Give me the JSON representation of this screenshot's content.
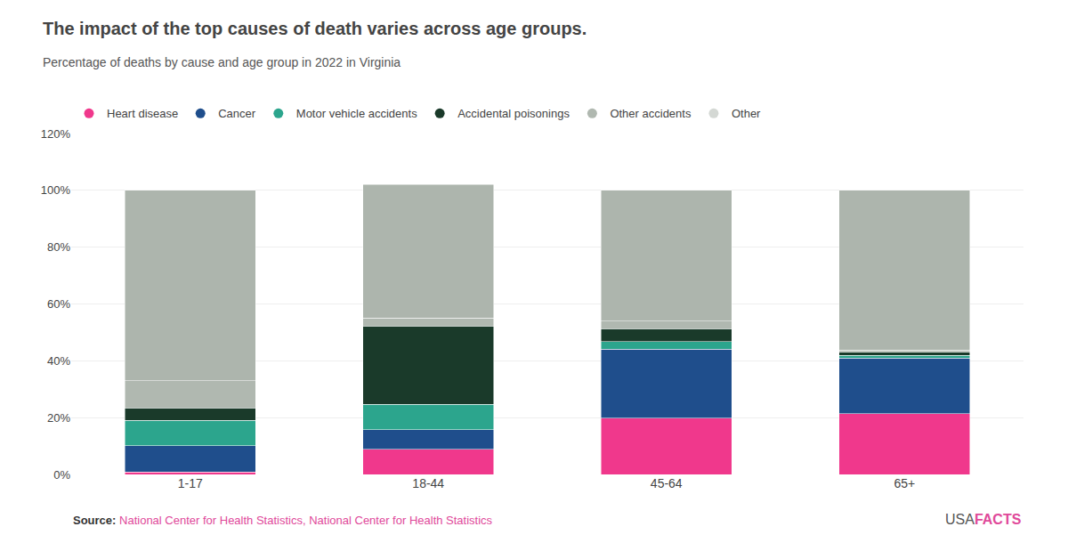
{
  "chart_data": {
    "type": "bar",
    "stacked": true,
    "title": "The impact of the top causes of death varies across age groups.",
    "subtitle": "Percentage of deaths by cause and age group in 2022 in Virginia",
    "categories": [
      "1-17",
      "18-44",
      "45-64",
      "65+"
    ],
    "series": [
      {
        "name": "Heart disease",
        "color": "#f0388c",
        "colors": [
          "#f0388c",
          "#f0388c",
          "#f0388c",
          "#f0388c"
        ],
        "values": [
          0.93,
          8.82,
          19.89,
          21.39
        ]
      },
      {
        "name": "Cancer",
        "color": "#1f4e8c",
        "colors": [
          "#1f4e8c",
          "#1f4e8c",
          "#1f4e8c",
          "#1f4e8c"
        ],
        "values": [
          9.15,
          6.96,
          24.28,
          19.56
        ]
      },
      {
        "name": "Motor vehicle accidents",
        "color": "#2ca58d",
        "colors": [
          "#2ca58d",
          "#2ca58d",
          "#2ca58d",
          "#2ca58d"
        ],
        "values": [
          8.93,
          8.82,
          2.53,
          0.89
        ]
      },
      {
        "name": "Accidental poisonings",
        "color": "#1a3a2a",
        "colors": [
          "#1a3a2a",
          "#1a3a2a",
          "#1a3a2a",
          "#1a3a2a"
        ],
        "values": [
          4.45,
          27.57,
          4.53,
          1.15
        ]
      },
      {
        "name": "Other accidents",
        "color": "#b0b8b0",
        "colors": [
          "#b0b8b0",
          "#b0b8b0",
          "#b0b8b0",
          "#b0b8b0"
        ],
        "values": [
          9.47,
          2.87,
          2.73,
          0.73
        ]
      },
      {
        "name": "Other",
        "color": "#d4d8d4",
        "colors": [
          "#adb5ad",
          "#adb5ad",
          "#adb5ad",
          "#adb5ad"
        ],
        "values": [
          67.07,
          46.96,
          46.04,
          56.28
        ]
      }
    ],
    "ylim": [
      0,
      120
    ],
    "yticks": [
      {
        "value": 0,
        "label": "0%"
      },
      {
        "value": 20,
        "label": "20%"
      },
      {
        "value": 40,
        "label": "40%"
      },
      {
        "value": 60,
        "label": "60%"
      },
      {
        "value": 80,
        "label": "80%"
      },
      {
        "value": 100,
        "label": "100%"
      },
      {
        "value": 120,
        "label": "120%"
      }
    ],
    "grid": true,
    "legend": "top",
    "annotations": [
      {
        "text": "Source:",
        "color": "#333333"
      },
      {
        "text": "National Center for Health Statistics, National Center for Health Statistics",
        "color": "#e0499a"
      },
      {
        "text": "USA",
        "color": "#555555"
      },
      {
        "text": "FACTS",
        "color": "#e0499a"
      }
    ]
  }
}
